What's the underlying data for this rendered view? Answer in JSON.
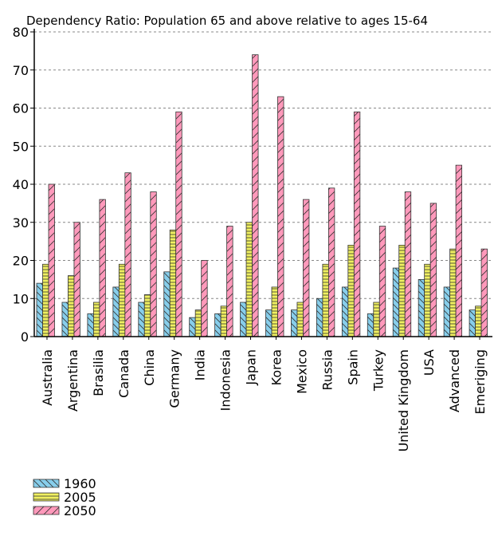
{
  "chart_data": {
    "type": "bar",
    "title": "Dependency Ratio: Population 65 and above relative to ages 15-64",
    "xlabel": "",
    "ylabel": "",
    "ylim": [
      0,
      80
    ],
    "yticks": [
      0,
      10,
      20,
      30,
      40,
      50,
      60,
      70,
      80
    ],
    "grid": true,
    "legend_position": "bottom-left",
    "categories": [
      "Australia",
      "Argentina",
      "Brasilia",
      "Canada",
      "China",
      "Germany",
      "India",
      "Indonesia",
      "Japan",
      "Korea",
      "Mexico",
      "Russia",
      "Spain",
      "Turkey",
      "United Kingdom",
      "USA",
      "Advanced",
      "Emeriging"
    ],
    "series": [
      {
        "name": "1960",
        "color": "#87ceeb",
        "pattern": "diagonal-backslash",
        "values": [
          14,
          9,
          6,
          13,
          9,
          17,
          5,
          6,
          9,
          7,
          7,
          10,
          13,
          6,
          18,
          15,
          13,
          7
        ]
      },
      {
        "name": "2005",
        "color": "#f0f060",
        "pattern": "horizontal",
        "values": [
          19,
          16,
          9,
          19,
          11,
          28,
          7,
          8,
          30,
          13,
          9,
          19,
          24,
          9,
          24,
          19,
          23,
          8
        ]
      },
      {
        "name": "2050",
        "color": "#ff99bb",
        "pattern": "diagonal-slash",
        "values": [
          40,
          30,
          36,
          43,
          38,
          59,
          20,
          29,
          74,
          63,
          36,
          39,
          59,
          29,
          38,
          35,
          45,
          23
        ]
      }
    ]
  }
}
